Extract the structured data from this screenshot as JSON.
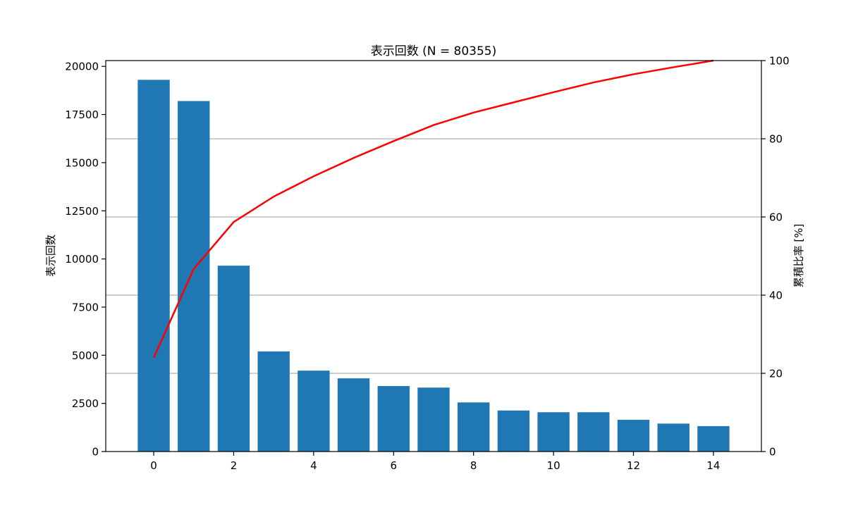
{
  "chart_data": {
    "type": "bar",
    "title": "表示回数 (N = 80355)",
    "xlabel": "",
    "ylabel": "表示回数",
    "y2label": "累積比率 [%]",
    "x": [
      0,
      1,
      2,
      3,
      4,
      5,
      6,
      7,
      8,
      9,
      10,
      11,
      12,
      13,
      14
    ],
    "xlim": [
      -1.2,
      15.2
    ],
    "ylim": [
      0,
      20300
    ],
    "y2lim": [
      0,
      100
    ],
    "xticks": [
      "0",
      "2",
      "4",
      "6",
      "8",
      "10",
      "12",
      "14"
    ],
    "yticks": [
      "0",
      "2500",
      "5000",
      "7500",
      "10000",
      "12500",
      "15000",
      "17500",
      "20000"
    ],
    "y2ticks": [
      "0",
      "20",
      "40",
      "60",
      "80",
      "100"
    ],
    "grid": "horizontal on secondary axis",
    "series": [
      {
        "type": "bar",
        "color": "#1f77b4",
        "values": [
          19300,
          18200,
          9650,
          5200,
          4200,
          3800,
          3400,
          3320,
          2550,
          2130,
          2040,
          2040,
          1650,
          1450,
          1320
        ]
      },
      {
        "type": "line",
        "axis": "secondary",
        "color": "#ff0000",
        "values": [
          24.0,
          46.7,
          58.7,
          65.2,
          70.4,
          75.1,
          79.4,
          83.5,
          86.7,
          89.3,
          91.9,
          94.4,
          96.5,
          98.3,
          100.0
        ]
      }
    ]
  }
}
